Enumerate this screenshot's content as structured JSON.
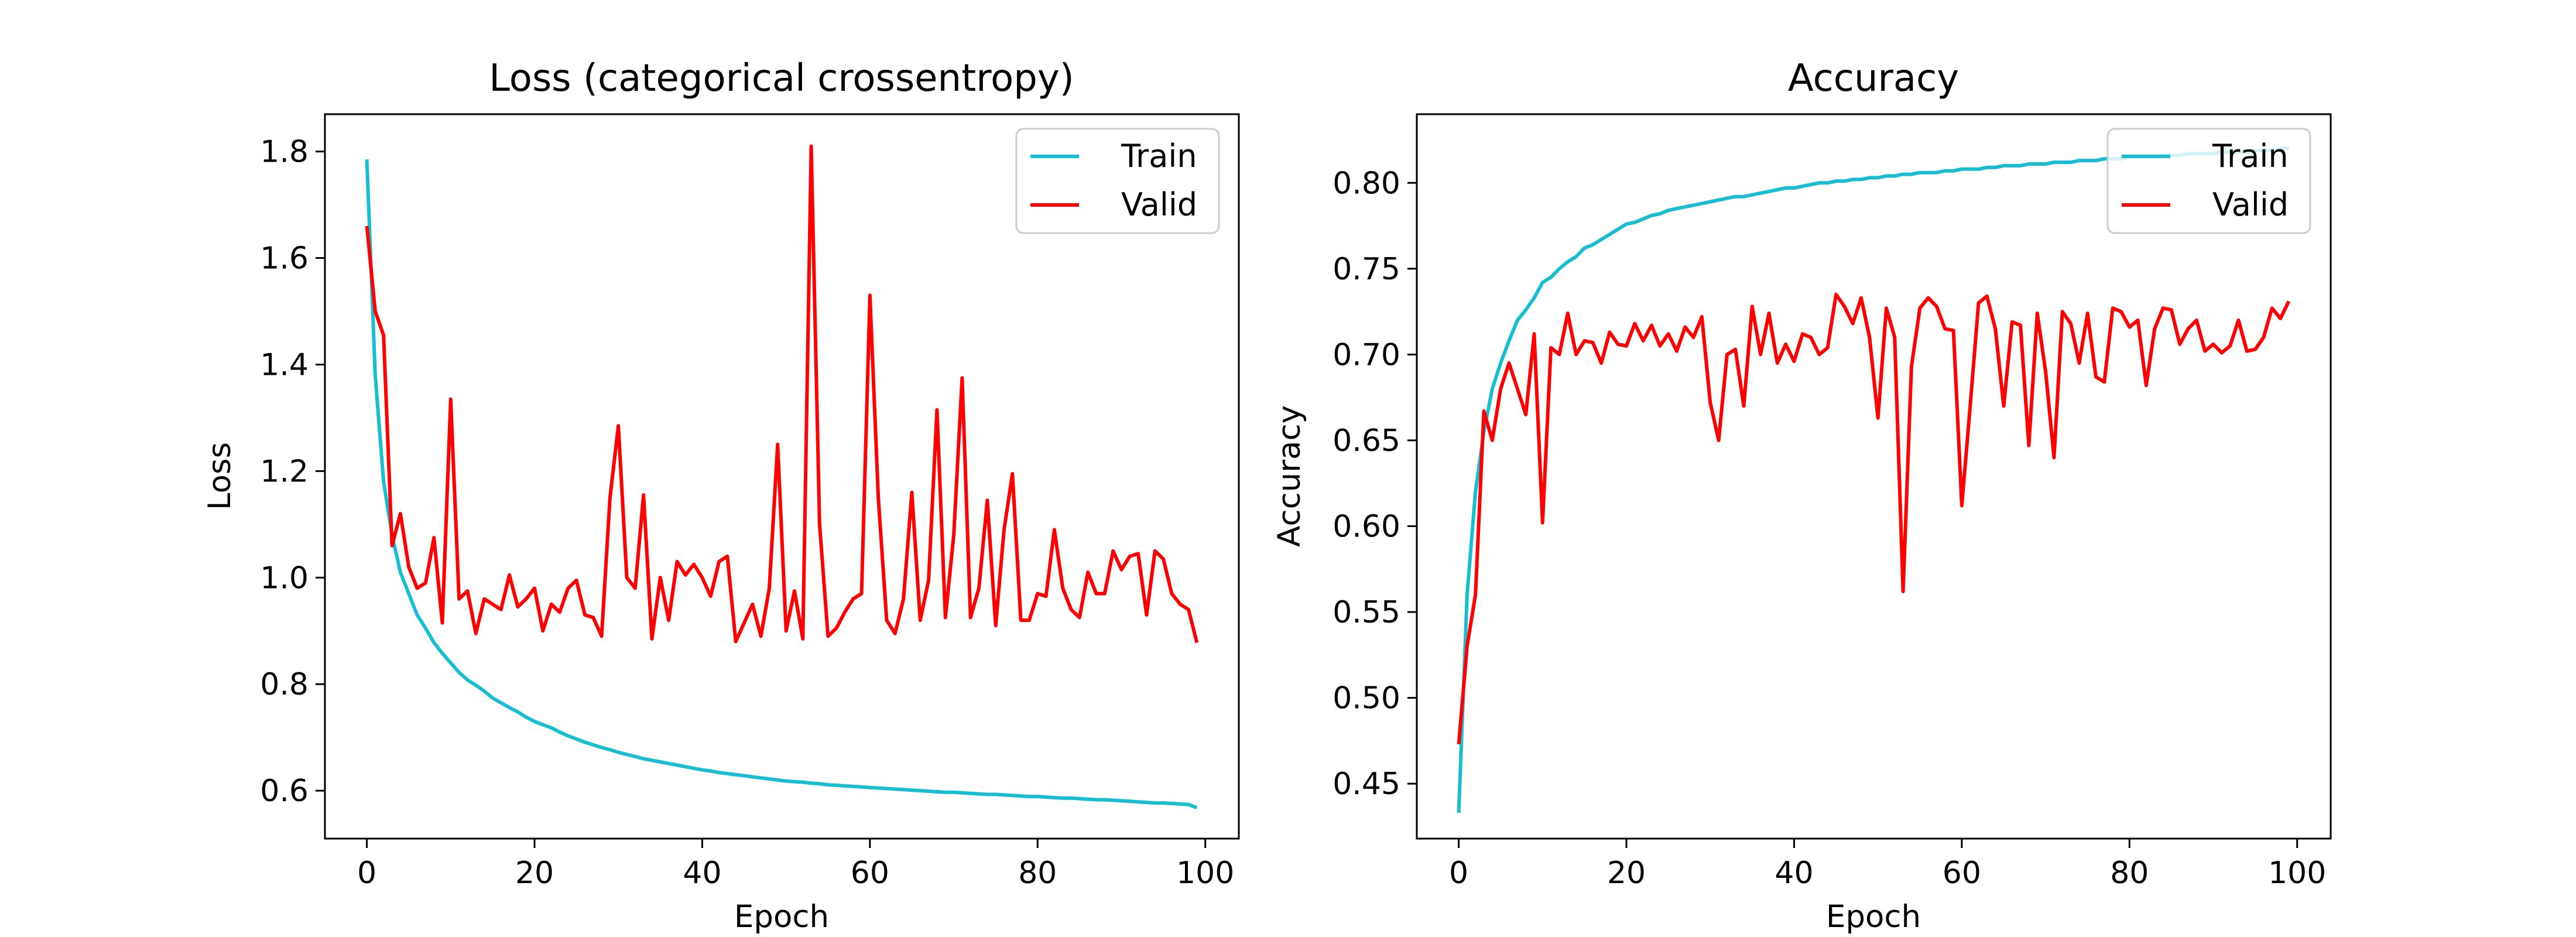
{
  "chart_data": [
    {
      "type": "line",
      "title": "Loss (categorical crossentropy)",
      "xlabel": "Epoch",
      "ylabel": "Loss",
      "xlim": [
        -5,
        104
      ],
      "ylim": [
        0.51,
        1.87
      ],
      "xticks": [
        0,
        20,
        40,
        60,
        80,
        100
      ],
      "yticks": [
        0.6,
        0.8,
        1.0,
        1.2,
        1.4,
        1.6,
        1.8
      ],
      "ytick_labels": [
        "0.6",
        "0.8",
        "1.0",
        "1.2",
        "1.4",
        "1.6",
        "1.8"
      ],
      "grid": false,
      "legend_position": "top-right",
      "series": [
        {
          "name": "Train",
          "color": "#17becf",
          "values": [
            1.785,
            1.38,
            1.18,
            1.08,
            1.01,
            0.97,
            0.93,
            0.905,
            0.878,
            0.858,
            0.84,
            0.822,
            0.808,
            0.798,
            0.787,
            0.774,
            0.765,
            0.756,
            0.748,
            0.738,
            0.73,
            0.724,
            0.718,
            0.71,
            0.703,
            0.697,
            0.691,
            0.686,
            0.681,
            0.677,
            0.672,
            0.668,
            0.664,
            0.66,
            0.657,
            0.654,
            0.651,
            0.648,
            0.645,
            0.642,
            0.639,
            0.637,
            0.634,
            0.632,
            0.63,
            0.628,
            0.626,
            0.624,
            0.622,
            0.62,
            0.618,
            0.617,
            0.616,
            0.614,
            0.613,
            0.611,
            0.61,
            0.609,
            0.608,
            0.607,
            0.606,
            0.605,
            0.604,
            0.603,
            0.602,
            0.601,
            0.6,
            0.599,
            0.598,
            0.597,
            0.597,
            0.596,
            0.595,
            0.594,
            0.593,
            0.593,
            0.592,
            0.591,
            0.59,
            0.589,
            0.589,
            0.588,
            0.587,
            0.586,
            0.586,
            0.585,
            0.584,
            0.583,
            0.583,
            0.582,
            0.581,
            0.58,
            0.579,
            0.578,
            0.577,
            0.577,
            0.576,
            0.575,
            0.574,
            0.568
          ]
        },
        {
          "name": "Valid",
          "color": "#ff0000",
          "values": [
            1.66,
            1.5,
            1.455,
            1.06,
            1.12,
            1.02,
            0.98,
            0.99,
            1.075,
            0.915,
            1.335,
            0.96,
            0.975,
            0.895,
            0.96,
            0.95,
            0.94,
            1.005,
            0.945,
            0.96,
            0.98,
            0.9,
            0.95,
            0.935,
            0.98,
            0.995,
            0.93,
            0.925,
            0.89,
            1.15,
            1.285,
            1.0,
            0.98,
            1.155,
            0.885,
            1.0,
            0.92,
            1.03,
            1.005,
            1.025,
            1.0,
            0.965,
            1.03,
            1.04,
            0.88,
            0.915,
            0.95,
            0.89,
            0.98,
            1.25,
            0.9,
            0.975,
            0.885,
            1.81,
            1.1,
            0.89,
            0.905,
            0.935,
            0.96,
            0.97,
            1.53,
            1.15,
            0.92,
            0.895,
            0.96,
            1.16,
            0.92,
            0.995,
            1.315,
            0.925,
            1.08,
            1.375,
            0.925,
            0.98,
            1.145,
            0.91,
            1.09,
            1.195,
            0.92,
            0.92,
            0.97,
            0.965,
            1.09,
            0.98,
            0.94,
            0.925,
            1.01,
            0.97,
            0.97,
            1.05,
            1.015,
            1.04,
            1.045,
            0.93,
            1.05,
            1.035,
            0.97,
            0.95,
            0.94,
            0.878
          ]
        }
      ]
    },
    {
      "type": "line",
      "title": "Accuracy",
      "xlabel": "Epoch",
      "ylabel": "Accuracy",
      "xlim": [
        -5,
        104
      ],
      "ylim": [
        0.418,
        0.84
      ],
      "xticks": [
        0,
        20,
        40,
        60,
        80,
        100
      ],
      "yticks": [
        0.45,
        0.5,
        0.55,
        0.6,
        0.65,
        0.7,
        0.75,
        0.8
      ],
      "ytick_labels": [
        "0.45",
        "0.50",
        "0.55",
        "0.60",
        "0.65",
        "0.70",
        "0.75",
        "0.80"
      ],
      "grid": false,
      "legend_position": "top-right",
      "series": [
        {
          "name": "Train",
          "color": "#17becf",
          "values": [
            0.433,
            0.56,
            0.62,
            0.655,
            0.68,
            0.695,
            0.708,
            0.72,
            0.726,
            0.733,
            0.742,
            0.745,
            0.75,
            0.754,
            0.757,
            0.762,
            0.764,
            0.767,
            0.77,
            0.773,
            0.776,
            0.777,
            0.779,
            0.781,
            0.782,
            0.784,
            0.785,
            0.786,
            0.787,
            0.788,
            0.789,
            0.79,
            0.791,
            0.792,
            0.792,
            0.793,
            0.794,
            0.795,
            0.796,
            0.797,
            0.797,
            0.798,
            0.799,
            0.8,
            0.8,
            0.801,
            0.801,
            0.802,
            0.802,
            0.803,
            0.803,
            0.804,
            0.804,
            0.805,
            0.805,
            0.806,
            0.806,
            0.806,
            0.807,
            0.807,
            0.808,
            0.808,
            0.808,
            0.809,
            0.809,
            0.81,
            0.81,
            0.81,
            0.811,
            0.811,
            0.811,
            0.812,
            0.812,
            0.812,
            0.813,
            0.813,
            0.813,
            0.814,
            0.814,
            0.814,
            0.815,
            0.815,
            0.815,
            0.815,
            0.816,
            0.816,
            0.816,
            0.817,
            0.817,
            0.817,
            0.817,
            0.818,
            0.818,
            0.818,
            0.818,
            0.819,
            0.819,
            0.819,
            0.82,
            0.82
          ]
        },
        {
          "name": "Valid",
          "color": "#ff0000",
          "values": [
            0.473,
            0.53,
            0.56,
            0.667,
            0.65,
            0.68,
            0.695,
            0.68,
            0.665,
            0.712,
            0.602,
            0.704,
            0.7,
            0.724,
            0.7,
            0.708,
            0.707,
            0.695,
            0.713,
            0.706,
            0.705,
            0.718,
            0.708,
            0.717,
            0.705,
            0.712,
            0.702,
            0.716,
            0.71,
            0.722,
            0.672,
            0.65,
            0.7,
            0.703,
            0.67,
            0.728,
            0.7,
            0.724,
            0.695,
            0.706,
            0.696,
            0.712,
            0.71,
            0.7,
            0.704,
            0.735,
            0.728,
            0.718,
            0.733,
            0.71,
            0.663,
            0.727,
            0.71,
            0.562,
            0.693,
            0.727,
            0.733,
            0.728,
            0.715,
            0.714,
            0.612,
            0.67,
            0.73,
            0.734,
            0.715,
            0.67,
            0.719,
            0.717,
            0.647,
            0.724,
            0.69,
            0.64,
            0.725,
            0.718,
            0.695,
            0.724,
            0.687,
            0.684,
            0.727,
            0.725,
            0.716,
            0.72,
            0.682,
            0.715,
            0.727,
            0.726,
            0.706,
            0.715,
            0.72,
            0.702,
            0.706,
            0.701,
            0.705,
            0.72,
            0.702,
            0.703,
            0.71,
            0.727,
            0.721,
            0.731
          ]
        }
      ]
    }
  ]
}
